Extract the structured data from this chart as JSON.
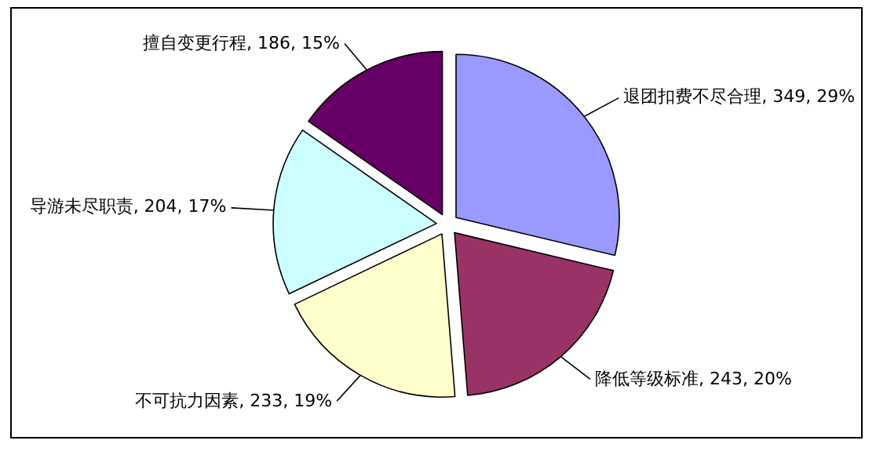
{
  "chart_data": {
    "type": "pie",
    "categories": [
      "退团扣费不尽合理",
      "降低等级标准",
      "不可抗力因素",
      "导游未尽职责",
      "擅自变更行程"
    ],
    "values": [
      349,
      243,
      233,
      204,
      186
    ],
    "value_labels": [
      "349, 29%",
      "243, 20%",
      "233, 19%",
      "204, 17%",
      "186, 15%"
    ],
    "colors": [
      "#9999ff",
      "#993366",
      "#ffffcc",
      "#ccffff",
      "#660066"
    ]
  }
}
